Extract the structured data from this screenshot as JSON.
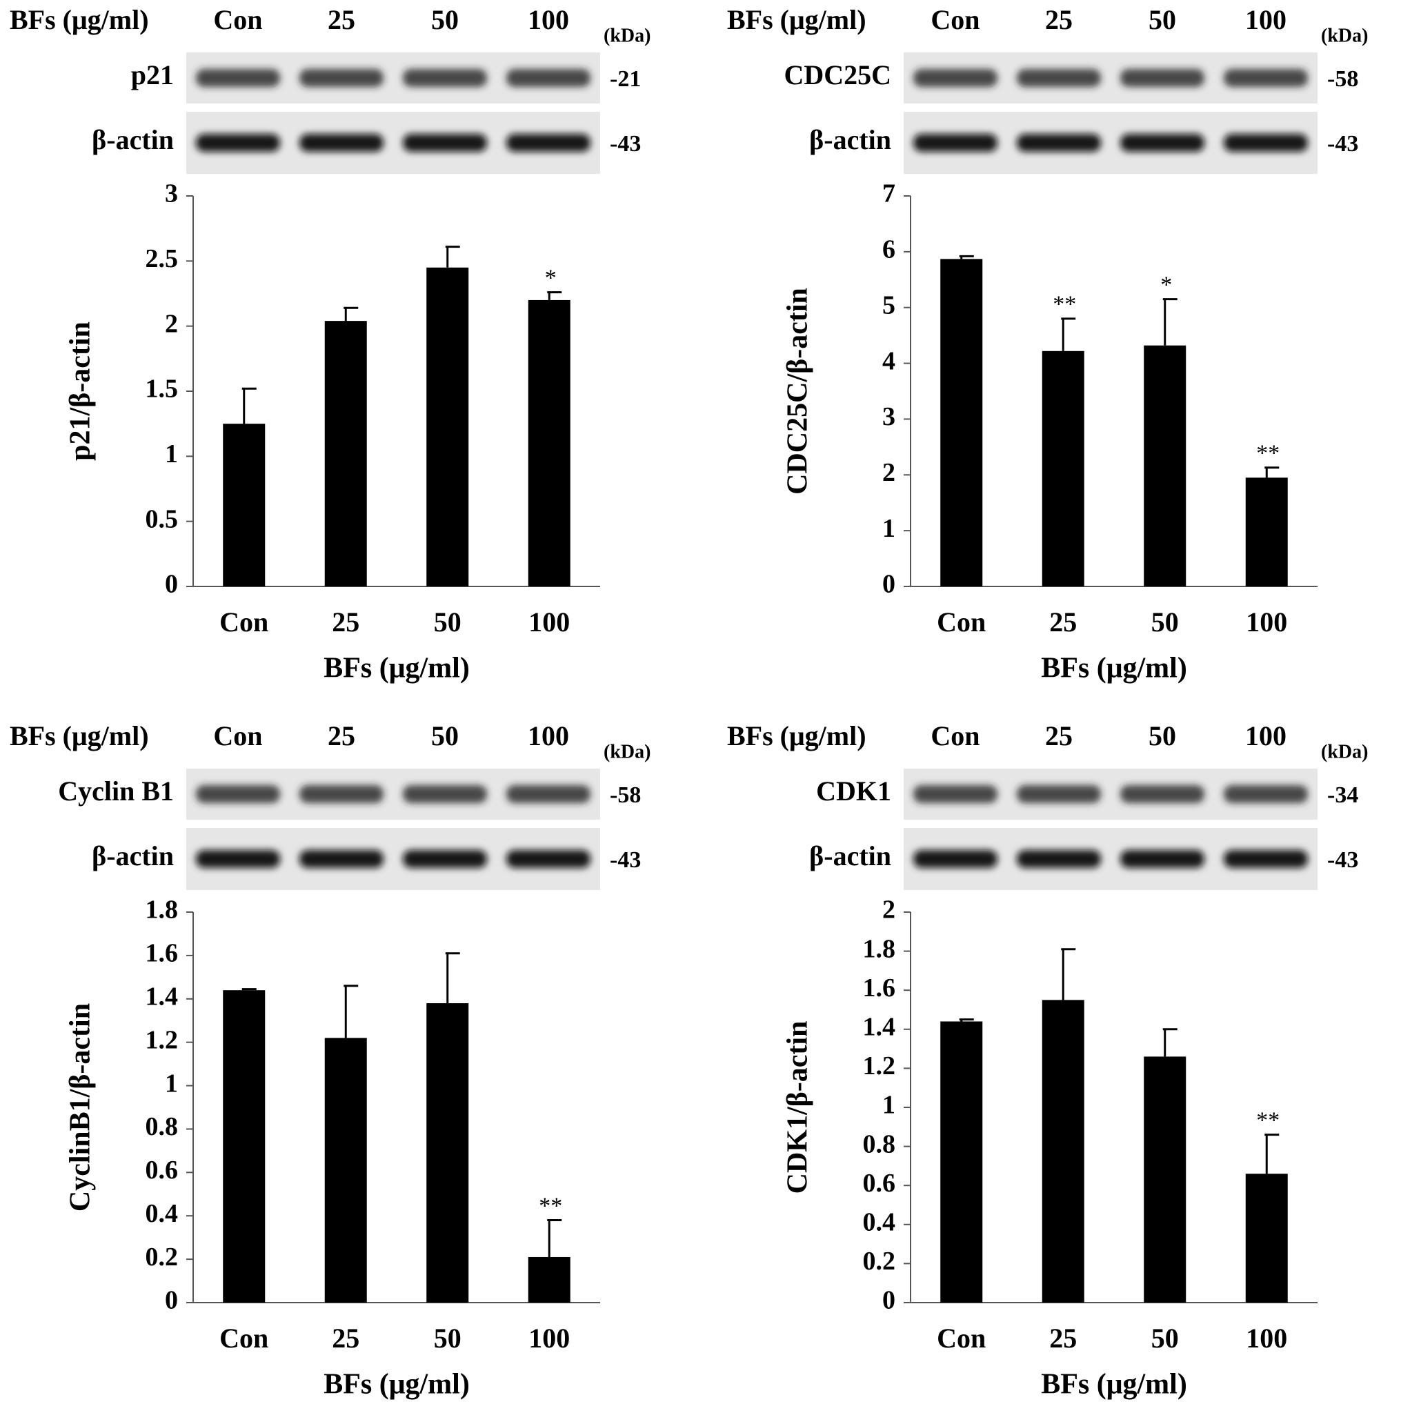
{
  "chart_data": [
    {
      "type": "bar",
      "blot": {
        "header": "BFs (μg/ml)",
        "lanes": [
          "Con",
          "25",
          "50",
          "100"
        ],
        "unit": "(kDa)",
        "rows": [
          {
            "label": "p21",
            "kda": "-21"
          },
          {
            "label": "β-actin",
            "kda": "-43"
          }
        ]
      },
      "categories": [
        "Con",
        "25",
        "50",
        "100"
      ],
      "values": [
        1.25,
        2.04,
        2.45,
        2.2
      ],
      "errors": [
        0.27,
        0.1,
        0.16,
        0.06
      ],
      "annotations": [
        null,
        null,
        null,
        "*"
      ],
      "color": "#000000",
      "ylim": [
        0,
        3
      ],
      "yticks": [
        0,
        0.5,
        1,
        1.5,
        2,
        2.5,
        3
      ],
      "xlabel": "BFs (μg/ml)",
      "ylabel": "p21/β-actin"
    },
    {
      "type": "bar",
      "blot": {
        "header": "BFs (μg/ml)",
        "lanes": [
          "Con",
          "25",
          "50",
          "100"
        ],
        "unit": "(kDa)",
        "rows": [
          {
            "label": "CDC25C",
            "kda": "-58"
          },
          {
            "label": "β-actin",
            "kda": "-43"
          }
        ]
      },
      "categories": [
        "Con",
        "25",
        "50",
        "100"
      ],
      "values": [
        5.87,
        4.22,
        4.32,
        1.95
      ],
      "errors": [
        0.05,
        0.58,
        0.83,
        0.18
      ],
      "annotations": [
        null,
        "**",
        "*",
        "**"
      ],
      "color": "#000000",
      "ylim": [
        0,
        7
      ],
      "yticks": [
        0,
        1,
        2,
        3,
        4,
        5,
        6,
        7
      ],
      "xlabel": "BFs (μg/ml)",
      "ylabel": "CDC25C/β-actin"
    },
    {
      "type": "bar",
      "blot": {
        "header": "BFs (μg/ml)",
        "lanes": [
          "Con",
          "25",
          "50",
          "100"
        ],
        "unit": "(kDa)",
        "rows": [
          {
            "label": "Cyclin B1",
            "kda": "-58"
          },
          {
            "label": "β-actin",
            "kda": "-43"
          }
        ]
      },
      "categories": [
        "Con",
        "25",
        "50",
        "100"
      ],
      "values": [
        1.44,
        1.22,
        1.38,
        0.21
      ],
      "errors": [
        0.005,
        0.24,
        0.23,
        0.17
      ],
      "annotations": [
        null,
        null,
        null,
        "**"
      ],
      "color": "#000000",
      "ylim": [
        0,
        1.8
      ],
      "yticks": [
        0,
        0.2,
        0.4,
        0.6,
        0.8,
        1,
        1.2,
        1.4,
        1.6,
        1.8
      ],
      "xlabel": "BFs (μg/ml)",
      "ylabel": "CyclinB1/β-actin"
    },
    {
      "type": "bar",
      "blot": {
        "header": "BFs (μg/ml)",
        "lanes": [
          "Con",
          "25",
          "50",
          "100"
        ],
        "unit": "(kDa)",
        "rows": [
          {
            "label": "CDK1",
            "kda": "-34"
          },
          {
            "label": "β-actin",
            "kda": "-43"
          }
        ]
      },
      "categories": [
        "Con",
        "25",
        "50",
        "100"
      ],
      "values": [
        1.44,
        1.55,
        1.26,
        0.66
      ],
      "errors": [
        0.01,
        0.26,
        0.14,
        0.2
      ],
      "annotations": [
        null,
        null,
        null,
        "**"
      ],
      "color": "#000000",
      "ylim": [
        0,
        2
      ],
      "yticks": [
        0,
        0.2,
        0.4,
        0.6,
        0.8,
        1,
        1.2,
        1.4,
        1.6,
        1.8,
        2
      ],
      "xlabel": "BFs (μg/ml)",
      "ylabel": "CDK1/β-actin"
    }
  ]
}
